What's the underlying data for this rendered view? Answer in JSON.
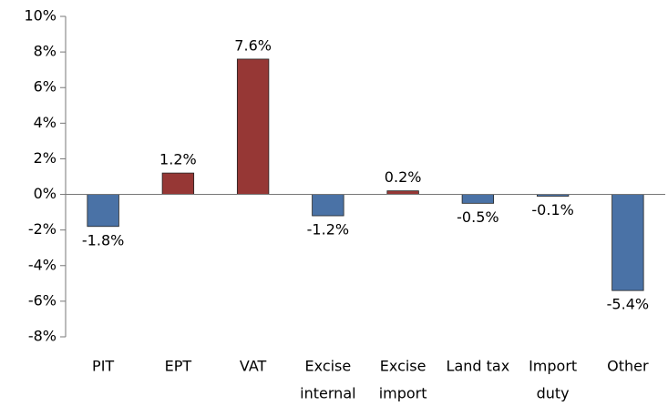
{
  "chart_data": {
    "type": "bar",
    "categories": [
      "PIT",
      "EPT",
      "VAT",
      [
        "Excise",
        "internal"
      ],
      [
        "Excise",
        "import"
      ],
      "Land tax",
      [
        "Import",
        "duty"
      ],
      "Other"
    ],
    "values": [
      -1.8,
      1.2,
      7.6,
      -1.2,
      0.2,
      -0.5,
      -0.1,
      -5.4
    ],
    "value_labels": [
      "-1.8%",
      "1.2%",
      "7.6%",
      "-1.2%",
      "0.2%",
      "-0.5%",
      "-0.1%",
      "-5.4%"
    ],
    "colors": [
      "#4a72a6",
      "#963735",
      "#963735",
      "#4a72a6",
      "#963735",
      "#4a72a6",
      "#4a72a6",
      "#4a72a6"
    ],
    "ylim": [
      -8,
      10
    ],
    "yticks": [
      {
        "value": -8,
        "label": "-8%"
      },
      {
        "value": -6,
        "label": "-6%"
      },
      {
        "value": -4,
        "label": "-4%"
      },
      {
        "value": -2,
        "label": "-2%"
      },
      {
        "value": 0,
        "label": "0%"
      },
      {
        "value": 2,
        "label": "2%"
      },
      {
        "value": 4,
        "label": "4%"
      },
      {
        "value": 6,
        "label": "6%"
      },
      {
        "value": 8,
        "label": "8%"
      },
      {
        "value": 10,
        "label": "10%"
      }
    ],
    "grid": false
  }
}
